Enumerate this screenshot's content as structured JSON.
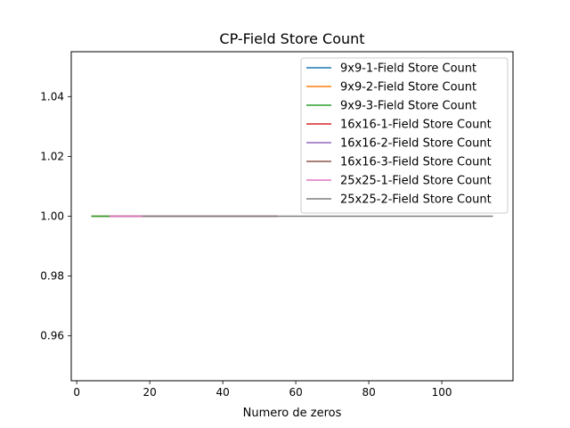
{
  "chart_data": {
    "type": "line",
    "title": "CP-Field Store Count",
    "xlabel": "Numero de zeros",
    "ylabel": "",
    "xlim": [
      -1.5,
      119.5
    ],
    "ylim": [
      0.945,
      1.055
    ],
    "x_ticks": [
      0,
      20,
      40,
      60,
      80,
      100
    ],
    "y_ticks": [
      0.96,
      0.98,
      1.0,
      1.02,
      1.04
    ],
    "x_tick_labels": [
      "0",
      "20",
      "40",
      "60",
      "80",
      "100"
    ],
    "y_tick_labels": [
      "0.96",
      "0.98",
      "1.00",
      "1.02",
      "1.04"
    ],
    "grid": false,
    "legend_position": "top-right",
    "series": [
      {
        "name": "9x9-1-Field Store Count",
        "color": "#1f77b4",
        "x": [
          4,
          55
        ],
        "y": [
          1.0,
          1.0
        ]
      },
      {
        "name": "9x9-2-Field Store Count",
        "color": "#ff7f0e",
        "x": [
          4,
          55
        ],
        "y": [
          1.0,
          1.0
        ]
      },
      {
        "name": "9x9-3-Field Store Count",
        "color": "#2ca02c",
        "x": [
          4,
          55
        ],
        "y": [
          1.0,
          1.0
        ]
      },
      {
        "name": "16x16-1-Field Store Count",
        "color": "#d62728",
        "x": [
          9,
          55
        ],
        "y": [
          1.0,
          1.0
        ]
      },
      {
        "name": "16x16-2-Field Store Count",
        "color": "#9467bd",
        "x": [
          9,
          55
        ],
        "y": [
          1.0,
          1.0
        ]
      },
      {
        "name": "16x16-3-Field Store Count",
        "color": "#8c564b",
        "x": [
          9,
          55
        ],
        "y": [
          1.0,
          1.0
        ]
      },
      {
        "name": "25x25-1-Field Store Count",
        "color": "#e377c2",
        "x": [
          9,
          55
        ],
        "y": [
          1.0,
          1.0
        ]
      },
      {
        "name": "25x25-2-Field Store Count",
        "color": "#7f7f7f",
        "x": [
          18,
          114
        ],
        "y": [
          1.0,
          1.0
        ]
      }
    ]
  }
}
